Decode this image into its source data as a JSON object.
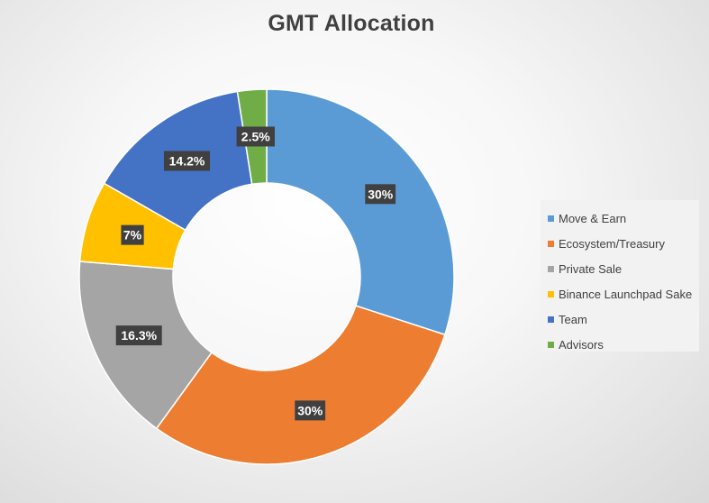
{
  "chart_data": {
    "type": "pie",
    "style": "donut",
    "title": "GMT Allocation",
    "series": [
      {
        "name": "Move & Earn",
        "value": 30,
        "label": "30%",
        "color": "#5b9bd5"
      },
      {
        "name": "Ecosystem/Treasury",
        "value": 30,
        "label": "30%",
        "color": "#ed7d31"
      },
      {
        "name": "Private Sale",
        "value": 16.3,
        "label": "16.3%",
        "color": "#a5a5a5"
      },
      {
        "name": "Binance Launchpad Sake",
        "value": 7,
        "label": "7%",
        "color": "#ffc000"
      },
      {
        "name": "Team",
        "value": 14.2,
        "label": "14.2%",
        "color": "#4472c4"
      },
      {
        "name": "Advisors",
        "value": 2.5,
        "label": "2.5%",
        "color": "#70ad47"
      }
    ],
    "legend": "right",
    "label_color": "#ffffff",
    "label_background": "#404040"
  }
}
